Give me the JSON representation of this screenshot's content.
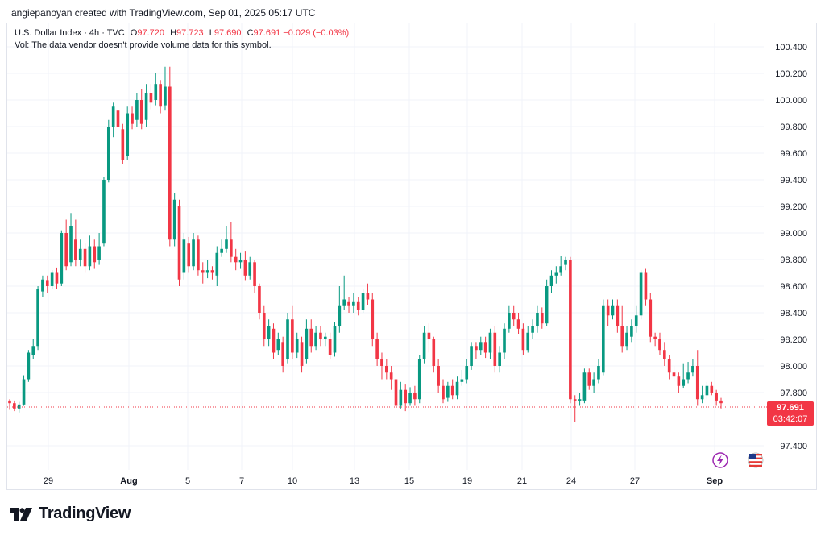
{
  "credit": "angiepanoyan created with TradingView.com, Sep 01, 2025 05:17 UTC",
  "legend": {
    "symbol": "U.S. Dollar Index · 4h · TVC",
    "o_label": "O",
    "o": "97.720",
    "h_label": "H",
    "h": "97.723",
    "l_label": "L",
    "l": "97.690",
    "c_label": "C",
    "c": "97.691",
    "change": "−0.029 (−0.03%)",
    "vol": "Vol: The data vendor doesn't provide volume data for this symbol."
  },
  "price_tag": {
    "price": "97.691",
    "countdown": "03:42:07"
  },
  "brand": {
    "name": "TradingView"
  },
  "colors": {
    "up": "#089981",
    "down": "#f23645",
    "grid": "#f0f3fa",
    "text": "#131722",
    "accent": "#9c27b0"
  },
  "icons": {
    "event": "lightning-icon",
    "flag": "us-flag-icon"
  },
  "chart_data": {
    "type": "candlestick",
    "y_ticks": [
      "100.400",
      "100.200",
      "100.000",
      "99.800",
      "99.600",
      "99.400",
      "99.200",
      "99.000",
      "98.800",
      "98.600",
      "98.400",
      "98.200",
      "98.000",
      "97.800",
      "97.400"
    ],
    "ylim": [
      97.35,
      100.45
    ],
    "x_ticks": [
      "29",
      "Aug",
      "5",
      "7",
      "10",
      "13",
      "15",
      "19",
      "21",
      "24",
      "27",
      "Sep"
    ],
    "last_price": 97.691,
    "candles": [
      [
        97.74,
        97.72,
        97.67,
        97.75
      ],
      [
        97.72,
        97.68,
        97.66,
        97.74
      ],
      [
        97.68,
        97.71,
        97.65,
        97.73
      ],
      [
        97.71,
        97.9,
        97.7,
        97.93
      ],
      [
        97.9,
        98.1,
        97.88,
        98.12
      ],
      [
        98.08,
        98.15,
        98.05,
        98.2
      ],
      [
        98.15,
        98.58,
        98.12,
        98.6
      ],
      [
        98.56,
        98.65,
        98.52,
        98.68
      ],
      [
        98.64,
        98.6,
        98.55,
        98.68
      ],
      [
        98.6,
        98.7,
        98.58,
        98.72
      ],
      [
        98.7,
        98.62,
        98.58,
        98.74
      ],
      [
        98.62,
        99.0,
        98.6,
        99.02
      ],
      [
        99.0,
        98.75,
        98.72,
        99.1
      ],
      [
        98.78,
        99.05,
        98.75,
        99.15
      ],
      [
        98.95,
        98.8,
        98.75,
        99.1
      ],
      [
        98.8,
        98.88,
        98.75,
        98.95
      ],
      [
        98.88,
        98.75,
        98.7,
        98.92
      ],
      [
        98.75,
        98.9,
        98.72,
        98.98
      ],
      [
        98.9,
        98.78,
        98.73,
        98.95
      ],
      [
        98.8,
        98.9,
        98.76,
        99.0
      ],
      [
        98.92,
        99.4,
        98.9,
        99.42
      ],
      [
        99.4,
        99.8,
        99.38,
        99.85
      ],
      [
        99.8,
        99.95,
        99.72,
        99.98
      ],
      [
        99.92,
        99.8,
        99.7,
        99.95
      ],
      [
        99.78,
        99.55,
        99.52,
        99.82
      ],
      [
        99.58,
        99.9,
        99.55,
        99.95
      ],
      [
        99.9,
        99.82,
        99.78,
        99.95
      ],
      [
        99.85,
        100.0,
        99.8,
        100.05
      ],
      [
        100.0,
        99.82,
        99.78,
        100.08
      ],
      [
        99.85,
        100.05,
        99.8,
        100.12
      ],
      [
        100.05,
        99.98,
        99.93,
        100.12
      ],
      [
        100.0,
        100.12,
        99.96,
        100.2
      ],
      [
        100.12,
        99.95,
        99.9,
        100.15
      ],
      [
        99.96,
        100.1,
        99.92,
        100.25
      ],
      [
        100.1,
        98.95,
        98.9,
        100.25
      ],
      [
        98.95,
        99.25,
        98.9,
        99.3
      ],
      [
        99.2,
        98.65,
        98.6,
        99.25
      ],
      [
        98.7,
        98.95,
        98.65,
        99.0
      ],
      [
        98.92,
        98.75,
        98.7,
        98.97
      ],
      [
        98.75,
        98.95,
        98.72,
        99.0
      ],
      [
        98.95,
        98.72,
        98.68,
        98.98
      ],
      [
        98.72,
        98.7,
        98.62,
        98.78
      ],
      [
        98.7,
        98.72,
        98.66,
        98.8
      ],
      [
        98.72,
        98.7,
        98.65,
        98.75
      ],
      [
        98.68,
        98.85,
        98.6,
        98.9
      ],
      [
        98.85,
        98.88,
        98.82,
        98.95
      ],
      [
        98.88,
        98.95,
        98.85,
        99.05
      ],
      [
        98.95,
        98.82,
        98.78,
        99.08
      ],
      [
        98.82,
        98.78,
        98.72,
        98.88
      ],
      [
        98.78,
        98.8,
        98.73,
        98.85
      ],
      [
        98.8,
        98.68,
        98.64,
        98.86
      ],
      [
        98.68,
        98.78,
        98.65,
        98.82
      ],
      [
        98.78,
        98.6,
        98.55,
        98.8
      ],
      [
        98.6,
        98.4,
        98.35,
        98.62
      ],
      [
        98.4,
        98.2,
        98.15,
        98.45
      ],
      [
        98.2,
        98.3,
        98.15,
        98.35
      ],
      [
        98.28,
        98.1,
        98.05,
        98.32
      ],
      [
        98.12,
        98.2,
        98.08,
        98.25
      ],
      [
        98.18,
        98.0,
        97.95,
        98.22
      ],
      [
        98.05,
        98.35,
        98.02,
        98.4
      ],
      [
        98.35,
        98.1,
        98.05,
        98.45
      ],
      [
        98.1,
        98.2,
        98.06,
        98.25
      ],
      [
        98.18,
        98.0,
        97.95,
        98.22
      ],
      [
        98.05,
        98.28,
        98.02,
        98.35
      ],
      [
        98.28,
        98.15,
        98.1,
        98.35
      ],
      [
        98.15,
        98.25,
        98.12,
        98.3
      ],
      [
        98.25,
        98.2,
        98.15,
        98.3
      ],
      [
        98.2,
        98.22,
        98.15,
        98.25
      ],
      [
        98.2,
        98.08,
        98.05,
        98.25
      ],
      [
        98.1,
        98.3,
        98.07,
        98.33
      ],
      [
        98.3,
        98.45,
        98.25,
        98.6
      ],
      [
        98.45,
        98.5,
        98.42,
        98.68
      ],
      [
        98.48,
        98.45,
        98.4,
        98.52
      ],
      [
        98.45,
        98.48,
        98.4,
        98.55
      ],
      [
        98.48,
        98.42,
        98.38,
        98.52
      ],
      [
        98.42,
        98.55,
        98.4,
        98.58
      ],
      [
        98.55,
        98.5,
        98.46,
        98.62
      ],
      [
        98.5,
        98.2,
        98.15,
        98.55
      ],
      [
        98.2,
        98.05,
        98.0,
        98.25
      ],
      [
        98.05,
        98.0,
        97.9,
        98.1
      ],
      [
        98.0,
        97.95,
        97.9,
        98.05
      ],
      [
        97.95,
        97.9,
        97.82,
        98.0
      ],
      [
        97.9,
        97.7,
        97.65,
        97.95
      ],
      [
        97.7,
        97.82,
        97.68,
        97.88
      ],
      [
        97.82,
        97.72,
        97.66,
        97.86
      ],
      [
        97.72,
        97.8,
        97.7,
        97.84
      ],
      [
        97.8,
        97.75,
        97.7,
        97.85
      ],
      [
        97.75,
        98.05,
        97.72,
        98.08
      ],
      [
        98.05,
        98.25,
        98.02,
        98.3
      ],
      [
        98.25,
        98.2,
        98.1,
        98.32
      ],
      [
        98.2,
        98.0,
        97.95,
        98.22
      ],
      [
        98.0,
        97.85,
        97.8,
        98.05
      ],
      [
        97.85,
        97.75,
        97.72,
        97.9
      ],
      [
        97.76,
        97.85,
        97.73,
        97.88
      ],
      [
        97.85,
        97.78,
        97.75,
        97.9
      ],
      [
        97.78,
        97.88,
        97.75,
        97.92
      ],
      [
        97.88,
        97.9,
        97.85,
        97.97
      ],
      [
        97.9,
        98.0,
        97.87,
        98.05
      ],
      [
        98.0,
        98.15,
        97.97,
        98.18
      ],
      [
        98.15,
        98.12,
        98.05,
        98.18
      ],
      [
        98.12,
        98.18,
        98.08,
        98.22
      ],
      [
        98.18,
        98.1,
        98.06,
        98.22
      ],
      [
        98.1,
        98.25,
        98.05,
        98.28
      ],
      [
        98.25,
        98.0,
        97.95,
        98.3
      ],
      [
        98.0,
        98.1,
        97.95,
        98.15
      ],
      [
        98.1,
        98.28,
        98.05,
        98.32
      ],
      [
        98.28,
        98.4,
        98.25,
        98.45
      ],
      [
        98.4,
        98.35,
        98.3,
        98.45
      ],
      [
        98.35,
        98.28,
        98.24,
        98.4
      ],
      [
        98.28,
        98.12,
        98.08,
        98.32
      ],
      [
        98.12,
        98.25,
        98.1,
        98.3
      ],
      [
        98.25,
        98.3,
        98.2,
        98.35
      ],
      [
        98.3,
        98.4,
        98.25,
        98.45
      ],
      [
        98.4,
        98.32,
        98.28,
        98.44
      ],
      [
        98.32,
        98.6,
        98.3,
        98.65
      ],
      [
        98.6,
        98.68,
        98.55,
        98.72
      ],
      [
        98.68,
        98.7,
        98.62,
        98.75
      ],
      [
        98.7,
        98.75,
        98.68,
        98.83
      ],
      [
        98.76,
        98.8,
        98.72,
        98.82
      ],
      [
        98.8,
        97.75,
        97.72,
        98.82
      ],
      [
        97.75,
        97.74,
        97.58,
        97.78
      ],
      [
        97.74,
        97.75,
        97.7,
        97.8
      ],
      [
        97.74,
        97.95,
        97.72,
        97.98
      ],
      [
        97.95,
        97.85,
        97.82,
        97.98
      ],
      [
        97.85,
        97.9,
        97.8,
        97.95
      ],
      [
        97.9,
        98.0,
        97.87,
        98.05
      ],
      [
        97.95,
        98.45,
        97.93,
        98.5
      ],
      [
        98.45,
        98.38,
        98.3,
        98.5
      ],
      [
        98.38,
        98.45,
        98.35,
        98.5
      ],
      [
        98.45,
        98.3,
        98.25,
        98.5
      ],
      [
        98.3,
        98.15,
        98.1,
        98.45
      ],
      [
        98.15,
        98.25,
        98.12,
        98.3
      ],
      [
        98.22,
        98.3,
        98.18,
        98.35
      ],
      [
        98.3,
        98.38,
        98.25,
        98.45
      ],
      [
        98.38,
        98.7,
        98.35,
        98.72
      ],
      [
        98.7,
        98.5,
        98.45,
        98.73
      ],
      [
        98.5,
        98.22,
        98.18,
        98.55
      ],
      [
        98.22,
        98.2,
        98.15,
        98.25
      ],
      [
        98.2,
        98.12,
        98.08,
        98.25
      ],
      [
        98.12,
        98.05,
        98.0,
        98.18
      ],
      [
        98.05,
        97.95,
        97.9,
        98.08
      ],
      [
        97.95,
        97.92,
        97.88,
        98.0
      ],
      [
        97.92,
        97.85,
        97.8,
        97.95
      ],
      [
        97.85,
        97.9,
        97.83,
        98.02
      ],
      [
        97.9,
        97.95,
        97.87,
        98.03
      ],
      [
        97.95,
        98.0,
        97.92,
        98.05
      ],
      [
        98.0,
        97.75,
        97.7,
        98.12
      ],
      [
        97.75,
        97.78,
        97.72,
        97.85
      ],
      [
        97.78,
        97.85,
        97.75,
        97.88
      ],
      [
        97.85,
        97.8,
        97.78,
        97.88
      ],
      [
        97.8,
        97.74,
        97.7,
        97.82
      ],
      [
        97.74,
        97.72,
        97.68,
        97.76
      ]
    ]
  }
}
